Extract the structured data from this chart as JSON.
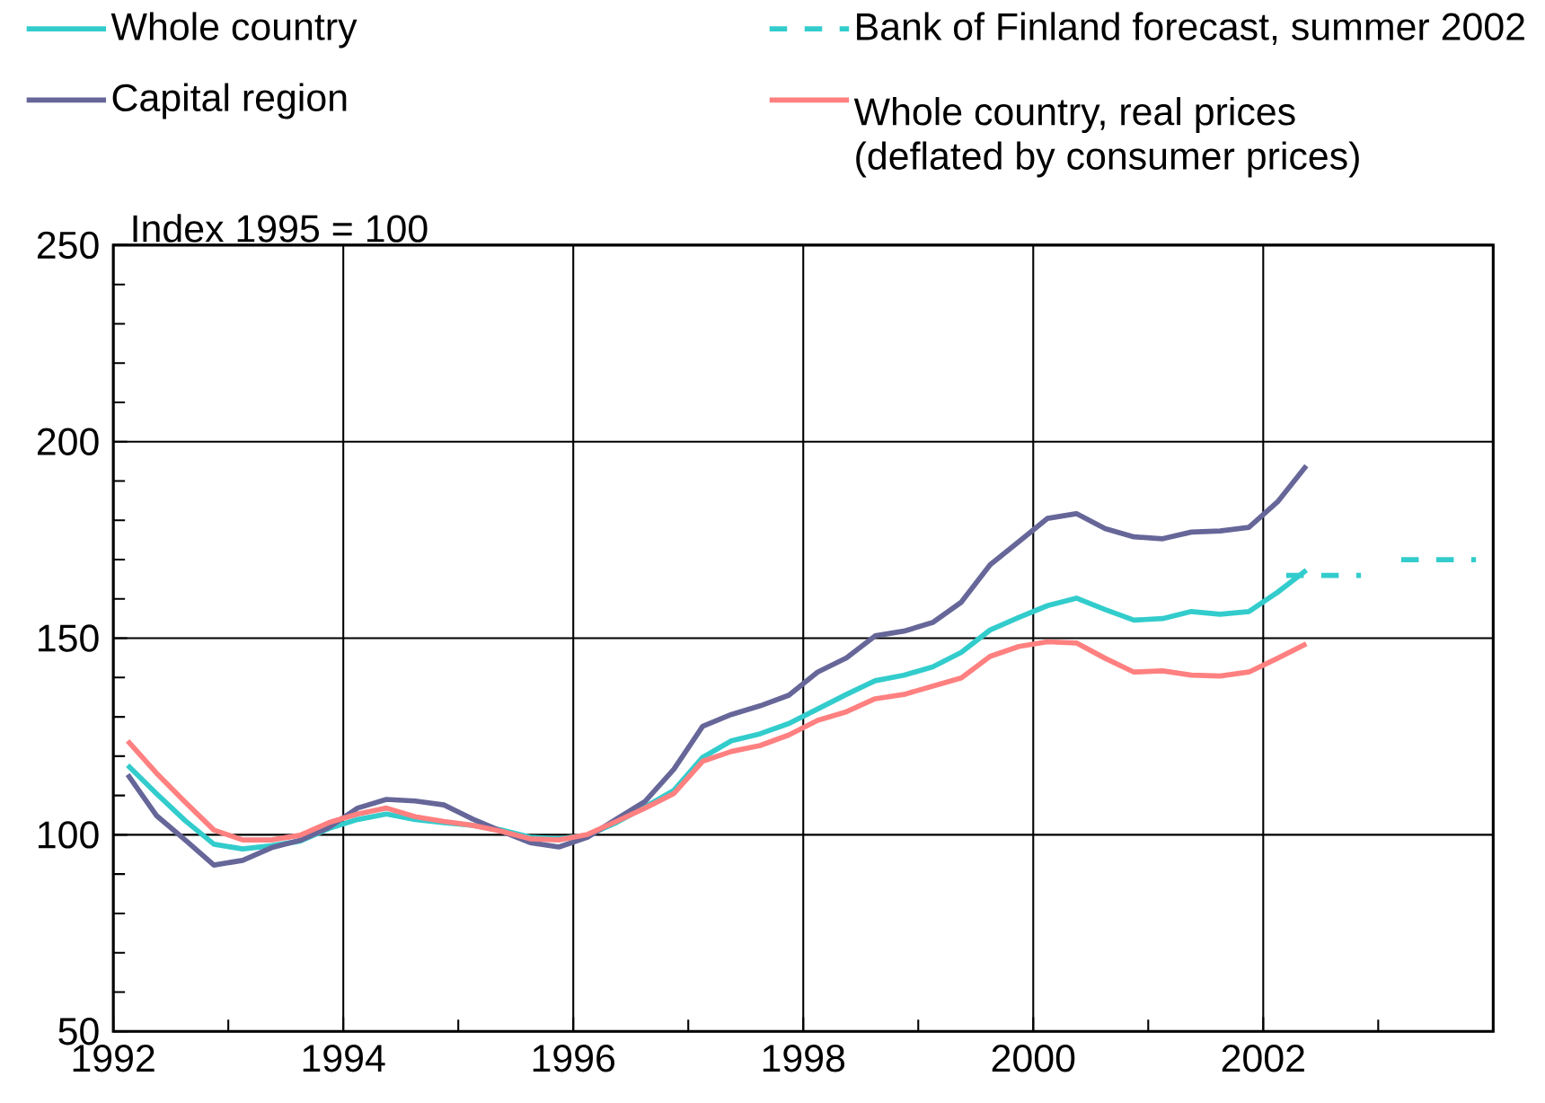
{
  "chart_data": {
    "type": "line",
    "ylabel": "Index 1995 = 100",
    "xlim": [
      1992,
      2004
    ],
    "ylim": [
      50,
      250
    ],
    "xticks": [
      1992,
      1994,
      1996,
      1998,
      2000,
      2002,
      {
        "value": 1993,
        "label": null
      },
      {
        "value": 1995,
        "label": null
      },
      {
        "value": 1997,
        "label": null
      },
      {
        "value": 1999,
        "label": null
      },
      {
        "value": 2001,
        "label": null
      },
      {
        "value": 2003,
        "label": null
      }
    ],
    "yticks": [
      50,
      100,
      150,
      200,
      250,
      {
        "value": 60,
        "label": null
      },
      {
        "value": 70,
        "label": null
      },
      {
        "value": 80,
        "label": null
      },
      {
        "value": 90,
        "label": null
      },
      {
        "value": 110,
        "label": null
      },
      {
        "value": 120,
        "label": null
      },
      {
        "value": 130,
        "label": null
      },
      {
        "value": 140,
        "label": null
      },
      {
        "value": 160,
        "label": null
      },
      {
        "value": 170,
        "label": null
      },
      {
        "value": 180,
        "label": null
      },
      {
        "value": 190,
        "label": null
      },
      {
        "value": 210,
        "label": null
      },
      {
        "value": 220,
        "label": null
      },
      {
        "value": 230,
        "label": null
      },
      {
        "value": 240,
        "label": null
      }
    ],
    "grid": true,
    "legend": "top",
    "marker": "none",
    "line_style": "solid",
    "x": [
      1992.125,
      1992.375,
      1992.625,
      1992.875,
      1993.125,
      1993.375,
      1993.625,
      1993.875,
      1994.125,
      1994.375,
      1994.625,
      1994.875,
      1995.125,
      1995.375,
      1995.625,
      1995.875,
      1996.125,
      1996.375,
      1996.625,
      1996.875,
      1997.125,
      1997.375,
      1997.625,
      1997.875,
      1998.125,
      1998.375,
      1998.625,
      1998.875,
      1999.125,
      1999.375,
      1999.625,
      1999.875,
      2000.125,
      2000.375,
      2000.625,
      2000.875,
      2001.125,
      2001.375,
      2001.625,
      2001.875,
      2002.125,
      2002.375
    ],
    "series": [
      {
        "name": "Whole country",
        "color": "#33cccc",
        "values": [
          117.7,
          110.5,
          103.6,
          97.6,
          96.4,
          97.2,
          98.4,
          101.6,
          103.9,
          105.3,
          103.9,
          103.1,
          102.4,
          101.2,
          99.4,
          99.0,
          99.9,
          103.1,
          107.1,
          111.3,
          119.7,
          123.9,
          125.7,
          128.3,
          132.0,
          135.7,
          139.2,
          140.6,
          142.7,
          146.4,
          152.1,
          155.3,
          158.3,
          160.2,
          157.3,
          154.6,
          155.0,
          156.8,
          156.1,
          156.8,
          161.7,
          167.3
        ]
      },
      {
        "name": "Bank of Finland forecast, summer 2002",
        "color": "#33cccc",
        "line_style": "dashed",
        "x": [
          2002.2,
          2002.85,
          2003.0,
          2003.2,
          2003.85
        ],
        "values": [
          166,
          166,
          null,
          170,
          170
        ]
      },
      {
        "name": "Capital region",
        "color": "#666699",
        "values": [
          115.3,
          104.9,
          98.7,
          92.3,
          93.5,
          96.7,
          98.6,
          101.9,
          106.8,
          109.0,
          108.6,
          107.6,
          104.0,
          100.9,
          98.0,
          96.9,
          99.4,
          104.0,
          108.5,
          116.7,
          127.6,
          130.6,
          132.8,
          135.5,
          141.4,
          145.0,
          150.6,
          151.8,
          154.0,
          159.2,
          168.7,
          174.6,
          180.5,
          181.7,
          177.9,
          175.8,
          175.3,
          177.0,
          177.3,
          178.2,
          184.7,
          193.9
        ]
      },
      {
        "name": "Whole country, real prices (deflated by consumer prices)",
        "color": "#ff8080",
        "values": [
          123.9,
          115.7,
          108.3,
          101.2,
          98.7,
          98.7,
          99.9,
          103.1,
          105.3,
          106.8,
          104.6,
          103.4,
          102.4,
          100.9,
          99.0,
          98.7,
          100.1,
          103.4,
          106.8,
          110.5,
          118.7,
          121.2,
          122.7,
          125.4,
          129.1,
          131.3,
          134.6,
          135.7,
          137.8,
          139.9,
          145.4,
          147.9,
          149.1,
          148.8,
          144.9,
          141.4,
          141.7,
          140.6,
          140.4,
          141.4,
          144.9,
          148.6
        ]
      }
    ]
  }
}
